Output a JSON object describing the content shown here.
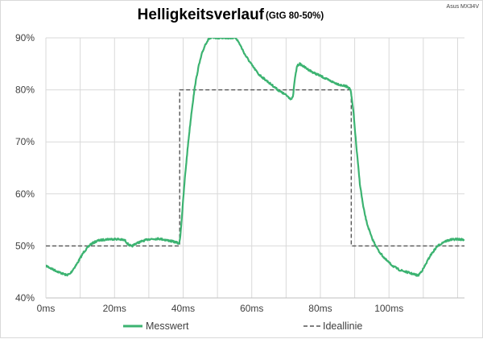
{
  "chart_data": {
    "type": "line",
    "title": "Helligkeitsverlauf",
    "subtitle": "(GtG 80-50%)",
    "corner_label": "Asus MX34V",
    "xlabel": "",
    "ylabel": "",
    "x_unit": "ms",
    "xlim": [
      0,
      122
    ],
    "ylim": [
      40,
      90
    ],
    "x_ticks": [
      0,
      20,
      40,
      60,
      80,
      100
    ],
    "x_tick_labels": [
      "0ms",
      "20ms",
      "40ms",
      "60ms",
      "80ms",
      "100ms"
    ],
    "y_ticks": [
      40,
      50,
      60,
      70,
      80,
      90
    ],
    "y_tick_labels": [
      "40%",
      "50%",
      "60%",
      "70%",
      "80%",
      "90%"
    ],
    "grid": {
      "vertical": true,
      "horizontal": true
    },
    "legend_position": "bottom",
    "series": [
      {
        "name": "Messwert",
        "color": "#3cb371",
        "style": "solid",
        "x": [
          0,
          2,
          4,
          6,
          7,
          9,
          11,
          13,
          15,
          18,
          21,
          23,
          24,
          25,
          26,
          28,
          30,
          33,
          36,
          38,
          38.8,
          39.2,
          39.8,
          40.5,
          41.5,
          42.5,
          43.5,
          44.5,
          45.5,
          46.5,
          47.5,
          48.6,
          55.4,
          56.5,
          58,
          60,
          62,
          65,
          68,
          70,
          71.5,
          72,
          72.5,
          73.2,
          74,
          76,
          78,
          80,
          82,
          84,
          86,
          88,
          88.8,
          89.6,
          90.5,
          91.5,
          92.5,
          93.5,
          95,
          97,
          99,
          101,
          103,
          105,
          107,
          108.5,
          110,
          112,
          114,
          116,
          118,
          120,
          122
        ],
        "y": [
          46.2,
          45.5,
          44.9,
          44.4,
          44.6,
          46.5,
          48.8,
          50.3,
          51.0,
          51.3,
          51.3,
          51.1,
          50.3,
          49.9,
          50.4,
          50.9,
          51.3,
          51.4,
          51.0,
          50.7,
          50.4,
          52.0,
          57.0,
          63.0,
          70.0,
          76.0,
          81.0,
          84.5,
          87.0,
          88.8,
          89.8,
          90.0,
          90.0,
          88.8,
          86.8,
          84.8,
          83.0,
          81.4,
          79.8,
          79.0,
          78.2,
          78.6,
          81.8,
          84.6,
          85.0,
          84.1,
          83.3,
          82.7,
          82.0,
          81.4,
          80.9,
          80.6,
          80.0,
          76.0,
          69.0,
          62.0,
          57.5,
          54.5,
          51.5,
          49.0,
          47.4,
          46.2,
          45.4,
          45.0,
          44.6,
          44.3,
          45.6,
          48.1,
          49.9,
          50.8,
          51.2,
          51.3,
          51.2
        ]
      },
      {
        "name": "Ideallinie",
        "color": "#555555",
        "style": "dashed",
        "x": [
          0,
          39,
          39,
          89,
          89,
          122
        ],
        "y": [
          50,
          50,
          80,
          80,
          50,
          50
        ]
      }
    ]
  }
}
